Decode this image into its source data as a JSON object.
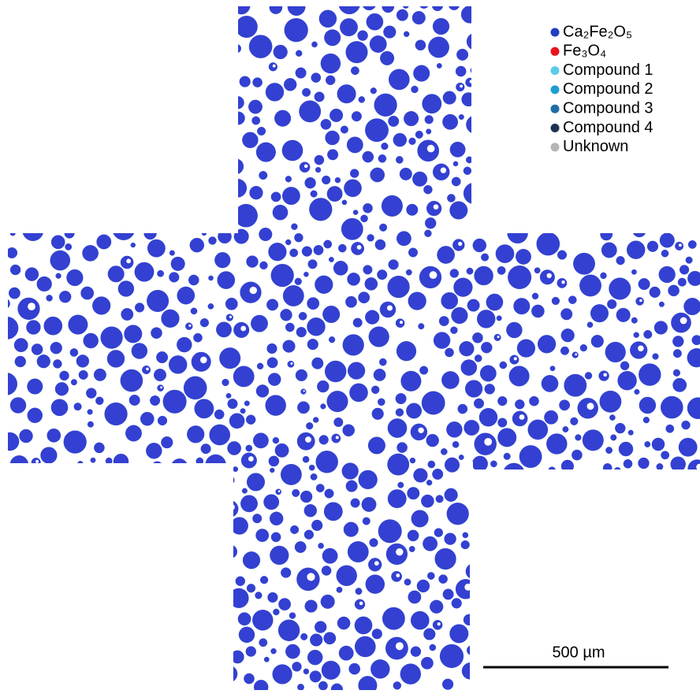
{
  "legend": {
    "items": [
      {
        "name": "Ca₂Fe₂O₅",
        "color": "#1f3fbf"
      },
      {
        "name": "Fe₃O₄",
        "color": "#e8141c"
      },
      {
        "name": "Compound 1",
        "color": "#5ccbea"
      },
      {
        "name": "Compound 2",
        "color": "#1d9fcf"
      },
      {
        "name": "Compound 3",
        "color": "#1f6ea6"
      },
      {
        "name": "Compound 4",
        "color": "#1d3354"
      },
      {
        "name": "Unknown",
        "color": "#b5b5b5"
      }
    ]
  },
  "scale_bar": {
    "label": "500 µm"
  }
}
